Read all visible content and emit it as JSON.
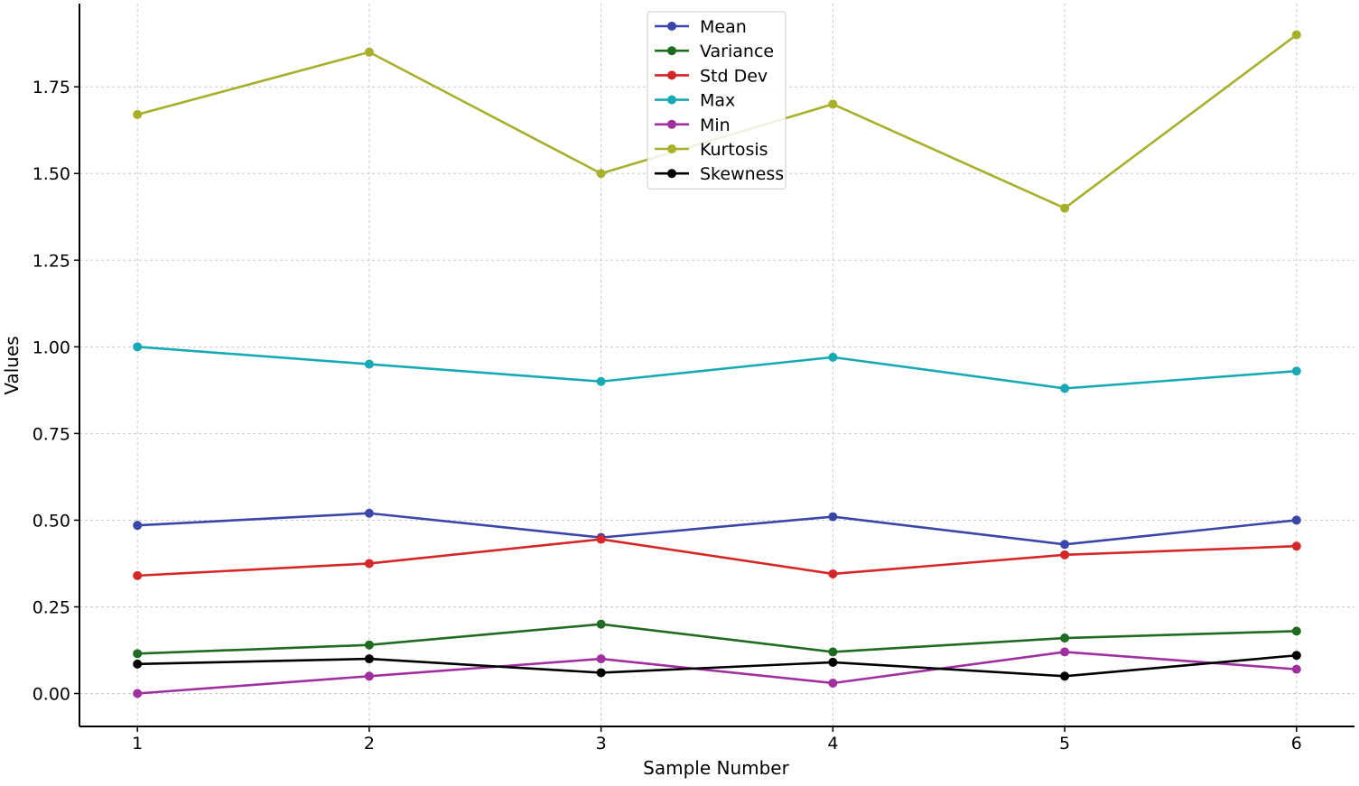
{
  "chart_data": {
    "type": "line",
    "title": "",
    "xlabel": "Sample Number",
    "ylabel": "Values",
    "x": [
      1,
      2,
      3,
      4,
      5,
      6
    ],
    "xlim": [
      0.75,
      6.25
    ],
    "ylim": [
      -0.095,
      1.99
    ],
    "xticks": [
      1,
      2,
      3,
      4,
      5,
      6
    ],
    "xtick_labels": [
      "1",
      "2",
      "3",
      "4",
      "5",
      "6"
    ],
    "yticks": [
      0,
      0.25,
      0.5,
      0.75,
      1.0,
      1.25,
      1.5,
      1.75
    ],
    "ytick_labels": [
      "0.00",
      "0.25",
      "0.50",
      "0.75",
      "1.00",
      "1.25",
      "1.50",
      "1.75"
    ],
    "grid": true,
    "legend_position": "top-center",
    "series": [
      {
        "name": "Mean",
        "color": "#3a46a8",
        "values": [
          0.485,
          0.52,
          0.45,
          0.51,
          0.43,
          0.5
        ]
      },
      {
        "name": "Variance",
        "color": "#1f6b22",
        "values": [
          0.115,
          0.14,
          0.2,
          0.12,
          0.16,
          0.18
        ]
      },
      {
        "name": "Std Dev",
        "color": "#d62728",
        "values": [
          0.34,
          0.375,
          0.445,
          0.345,
          0.4,
          0.425
        ]
      },
      {
        "name": "Max",
        "color": "#17aab5",
        "values": [
          1.0,
          0.95,
          0.9,
          0.97,
          0.88,
          0.93
        ]
      },
      {
        "name": "Min",
        "color": "#a02fa0",
        "values": [
          0.0,
          0.05,
          0.1,
          0.03,
          0.12,
          0.07
        ]
      },
      {
        "name": "Kurtosis",
        "color": "#a8b02a",
        "values": [
          1.67,
          1.85,
          1.5,
          1.7,
          1.4,
          1.9
        ]
      },
      {
        "name": "Skewness",
        "color": "#000000",
        "values": [
          0.085,
          0.1,
          0.06,
          0.09,
          0.05,
          0.11
        ]
      }
    ]
  }
}
